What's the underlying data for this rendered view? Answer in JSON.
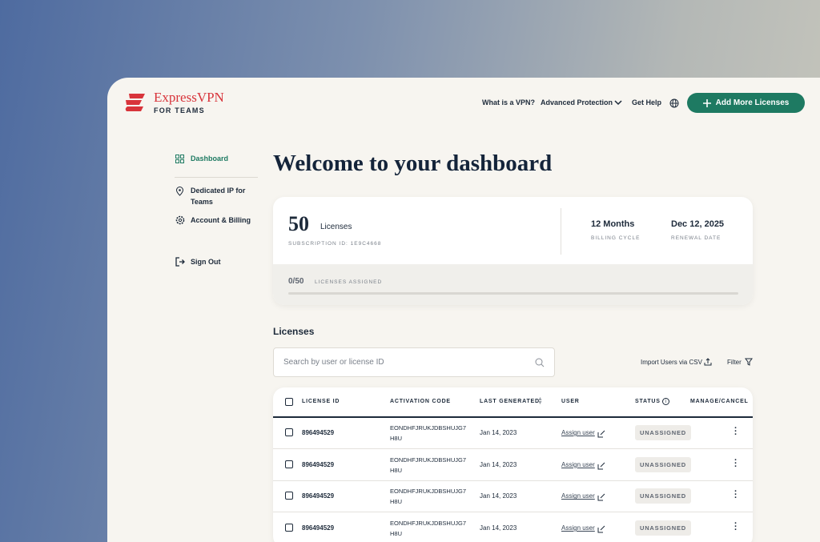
{
  "header": {
    "logo": {
      "brand": "ExpressVPN",
      "sub": "FOR TEAMS"
    },
    "nav": [
      "What is a VPN?",
      "Advanced Protection",
      "Get Help"
    ],
    "button": "Add More Licenses"
  },
  "sidebar": {
    "items": [
      "Dashboard",
      "Dedicated IP for Teams",
      "Account & Billing"
    ],
    "sign_out": "Sign Out"
  },
  "main": {
    "title": "Welcome to your dashboard",
    "summary": {
      "count": "50",
      "count_label": "Licenses",
      "subscription": "SUBSCRIPTION ID: 1E9C4668",
      "billing": {
        "value": "12 Months",
        "label": "BILLING CYCLE"
      },
      "renewal": {
        "value": "Dec 12, 2025",
        "label": "RENEWAL DATE"
      },
      "assigned": {
        "value": "0/50",
        "label": "LICENSES ASSIGNED"
      }
    },
    "licenses": {
      "heading": "Licenses",
      "search_placeholder": "Search by user or license ID",
      "import": "Import Users via CSV",
      "filter": "Filter",
      "columns": [
        "LICENSE ID",
        "ACTIVATION CODE",
        "LAST GENERATED",
        "USER",
        "STATUS",
        "MANAGE/CANCEL"
      ],
      "rows": [
        [
          "896494529",
          "EONDHFJRUKJDBSHUJG7H8U",
          "Jan 14, 2023",
          "Assign user",
          "UNASSIGNED"
        ],
        [
          "896494529",
          "EONDHFJRUKJDBSHUJG7H8U",
          "Jan 14, 2023",
          "Assign user",
          "UNASSIGNED"
        ],
        [
          "896494529",
          "EONDHFJRUKJDBSHUJG7H8U",
          "Jan 14, 2023",
          "Assign user",
          "UNASSIGNED"
        ],
        [
          "896494529",
          "EONDHFJRUKJDBSHUJG7H8U",
          "Jan 14, 2023",
          "Assign user",
          "UNASSIGNED"
        ]
      ]
    }
  }
}
